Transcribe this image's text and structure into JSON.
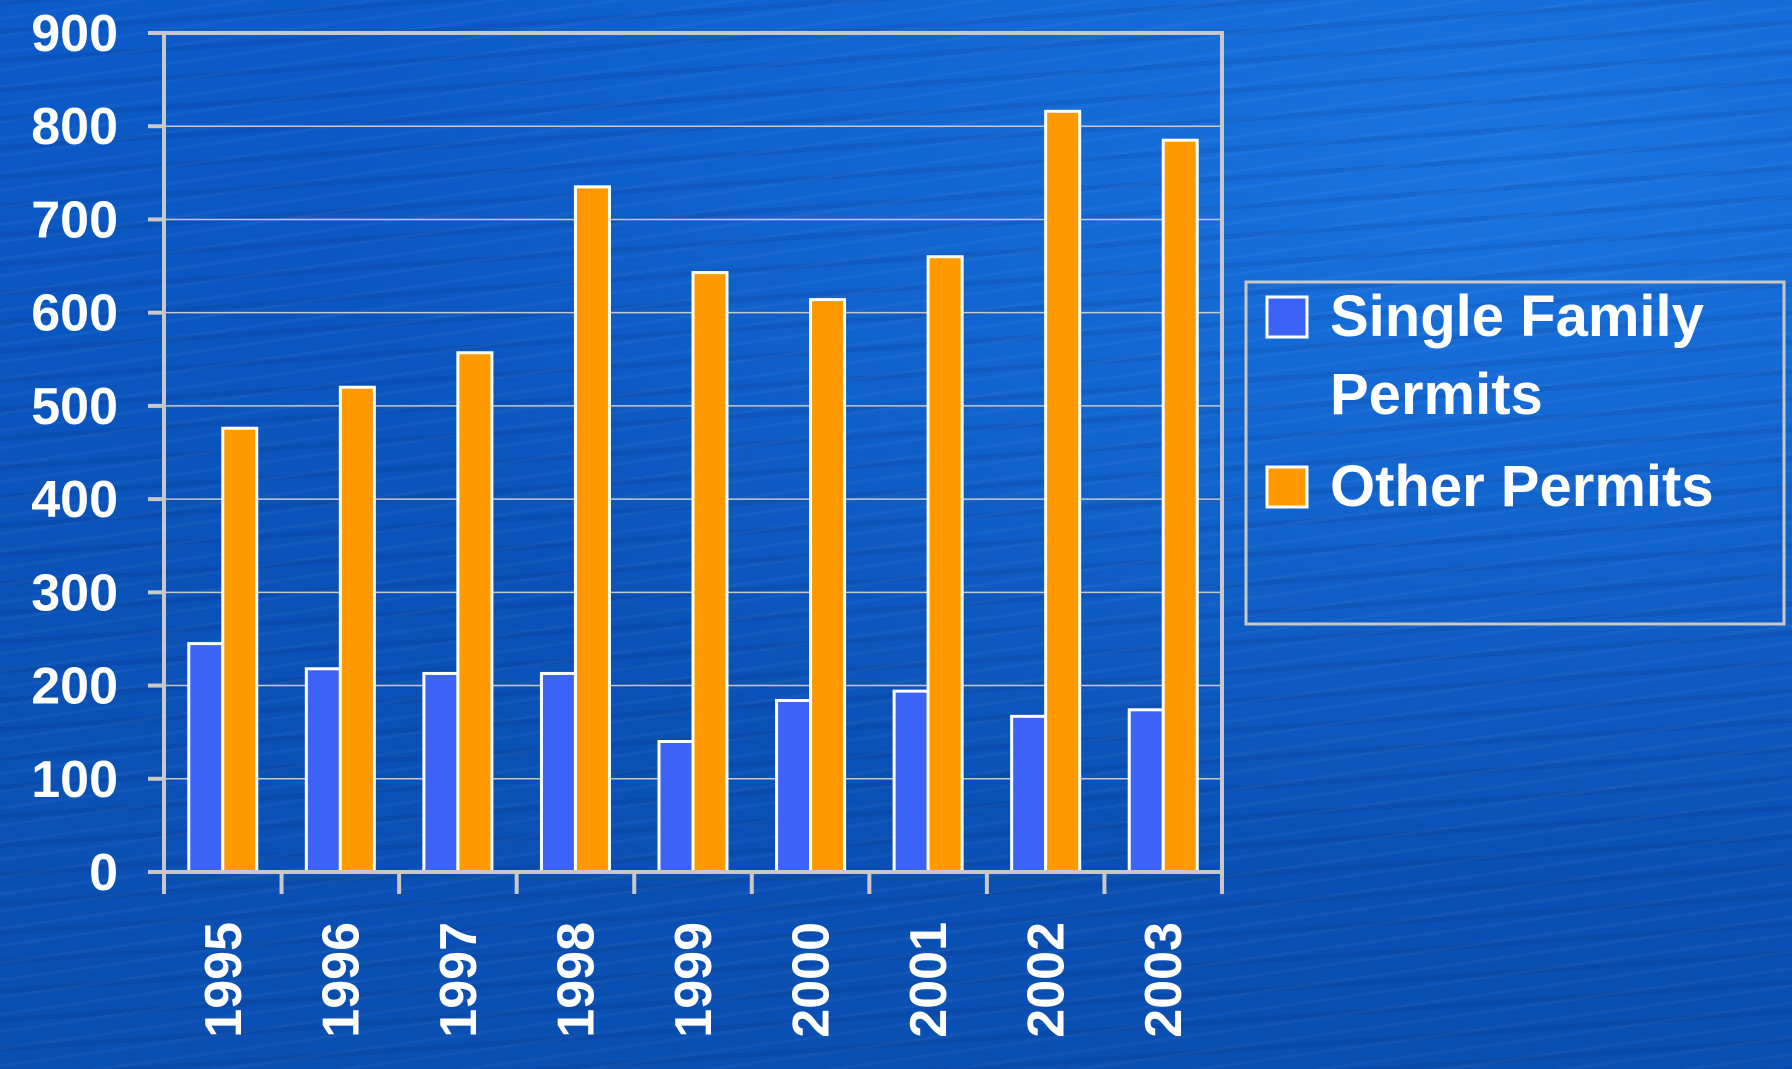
{
  "chart_data": {
    "type": "bar",
    "categories": [
      "1995",
      "1996",
      "1997",
      "1998",
      "1999",
      "2000",
      "2001",
      "2002",
      "2003"
    ],
    "series": [
      {
        "name": "Single Family Permits",
        "values": [
          245,
          218,
          213,
          213,
          140,
          184,
          194,
          167,
          174
        ]
      },
      {
        "name": "Other Permits",
        "values": [
          476,
          520,
          557,
          735,
          643,
          614,
          660,
          816,
          785
        ]
      }
    ],
    "ylim": [
      0,
      900
    ],
    "yticks": [
      "0",
      "100",
      "200",
      "300",
      "400",
      "500",
      "600",
      "700",
      "800",
      "900"
    ],
    "grid": true,
    "legend": "right",
    "legend_lines": [
      [
        "Single Family",
        "Permits"
      ],
      [
        "Other Permits"
      ]
    ],
    "colors": {
      "series": [
        "#3d63f6",
        "#ff9900"
      ],
      "bar_outline": "#ffffff",
      "axis": "#c8c8c8",
      "grid": "#c8c8c8",
      "text": "#ffffff",
      "background": "#0a57c4"
    }
  }
}
